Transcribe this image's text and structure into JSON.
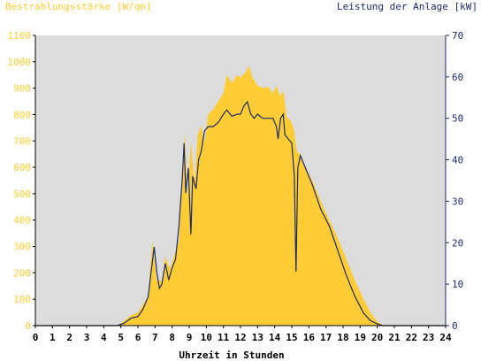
{
  "chart_data": {
    "type": "area",
    "title_left": "Bestrahlungsstärke [W/qm]",
    "title_right": "Leistung der Anlage [kW]",
    "xlabel": "Uhrzeit in Stunden",
    "x_ticks": [
      "0",
      "1",
      "2",
      "3",
      "4",
      "5",
      "6",
      "7",
      "8",
      "9",
      "10",
      "11",
      "12",
      "13",
      "14",
      "15",
      "16",
      "17",
      "18",
      "19",
      "20",
      "21",
      "22",
      "23",
      "24"
    ],
    "xlim": [
      0,
      24
    ],
    "y_left": {
      "ticks": [
        0,
        100,
        200,
        300,
        400,
        500,
        600,
        700,
        800,
        900,
        1000,
        1100
      ],
      "lim": [
        0,
        1100
      ]
    },
    "y_right": {
      "ticks": [
        0,
        10,
        20,
        30,
        40,
        50,
        60,
        70
      ],
      "lim": [
        0,
        70
      ]
    },
    "colors": {
      "irradiance": "#ffcc33",
      "power": "#1a2a6c",
      "plot_bg": "#dcdcdc",
      "left_axis_text": "#ffcc33",
      "right_axis_text": "#1a2a6c"
    },
    "series": [
      {
        "name": "Bestrahlungsstärke",
        "axis": "left",
        "style": "area",
        "points": [
          [
            0,
            0
          ],
          [
            4.7,
            0
          ],
          [
            5.0,
            8
          ],
          [
            5.5,
            35
          ],
          [
            6.0,
            50
          ],
          [
            6.3,
            80
          ],
          [
            6.6,
            110
          ],
          [
            6.85,
            320
          ],
          [
            7.1,
            170
          ],
          [
            7.4,
            170
          ],
          [
            7.6,
            260
          ],
          [
            7.9,
            215
          ],
          [
            8.1,
            260
          ],
          [
            8.4,
            320
          ],
          [
            8.6,
            600
          ],
          [
            8.75,
            730
          ],
          [
            8.9,
            480
          ],
          [
            9.1,
            700
          ],
          [
            9.3,
            540
          ],
          [
            9.5,
            720
          ],
          [
            9.7,
            760
          ],
          [
            9.9,
            690
          ],
          [
            10.1,
            800
          ],
          [
            10.4,
            820
          ],
          [
            10.7,
            850
          ],
          [
            11.0,
            880
          ],
          [
            11.2,
            950
          ],
          [
            11.5,
            920
          ],
          [
            11.8,
            950
          ],
          [
            12.0,
            940
          ],
          [
            12.3,
            960
          ],
          [
            12.5,
            985
          ],
          [
            12.7,
            940
          ],
          [
            13.0,
            910
          ],
          [
            13.3,
            900
          ],
          [
            13.6,
            905
          ],
          [
            13.9,
            880
          ],
          [
            14.1,
            910
          ],
          [
            14.3,
            870
          ],
          [
            14.5,
            890
          ],
          [
            14.7,
            790
          ],
          [
            14.9,
            780
          ],
          [
            15.1,
            750
          ],
          [
            15.3,
            660
          ],
          [
            15.5,
            650
          ],
          [
            15.8,
            600
          ],
          [
            16.2,
            550
          ],
          [
            16.7,
            470
          ],
          [
            17.2,
            400
          ],
          [
            17.7,
            330
          ],
          [
            18.2,
            250
          ],
          [
            18.7,
            170
          ],
          [
            19.2,
            100
          ],
          [
            19.6,
            50
          ],
          [
            20.0,
            15
          ],
          [
            20.4,
            0
          ],
          [
            24,
            0
          ]
        ]
      },
      {
        "name": "Leistung der Anlage",
        "axis": "right",
        "style": "line",
        "points": [
          [
            0,
            0
          ],
          [
            4.8,
            0
          ],
          [
            5.2,
            0.6
          ],
          [
            5.6,
            1.8
          ],
          [
            6.0,
            2.2
          ],
          [
            6.3,
            4.0
          ],
          [
            6.6,
            7.0
          ],
          [
            6.8,
            14
          ],
          [
            6.95,
            19
          ],
          [
            7.1,
            13
          ],
          [
            7.25,
            9
          ],
          [
            7.4,
            10
          ],
          [
            7.6,
            15
          ],
          [
            7.8,
            11
          ],
          [
            8.0,
            14
          ],
          [
            8.2,
            16
          ],
          [
            8.4,
            24
          ],
          [
            8.6,
            36
          ],
          [
            8.7,
            44
          ],
          [
            8.8,
            32
          ],
          [
            8.95,
            38
          ],
          [
            9.1,
            22
          ],
          [
            9.2,
            36
          ],
          [
            9.4,
            33
          ],
          [
            9.55,
            40
          ],
          [
            9.7,
            42
          ],
          [
            9.9,
            47
          ],
          [
            10.1,
            48
          ],
          [
            10.4,
            48
          ],
          [
            10.7,
            49
          ],
          [
            11.0,
            51
          ],
          [
            11.2,
            52
          ],
          [
            11.5,
            50.5
          ],
          [
            11.8,
            51
          ],
          [
            12.0,
            51
          ],
          [
            12.2,
            53
          ],
          [
            12.4,
            54
          ],
          [
            12.6,
            51
          ],
          [
            12.8,
            50
          ],
          [
            13.0,
            51
          ],
          [
            13.3,
            50
          ],
          [
            13.6,
            50
          ],
          [
            13.9,
            50
          ],
          [
            14.1,
            48
          ],
          [
            14.2,
            45
          ],
          [
            14.35,
            50
          ],
          [
            14.5,
            51
          ],
          [
            14.6,
            46
          ],
          [
            14.8,
            45
          ],
          [
            15.0,
            44
          ],
          [
            15.15,
            36
          ],
          [
            15.25,
            13
          ],
          [
            15.35,
            38
          ],
          [
            15.5,
            41
          ],
          [
            15.8,
            38
          ],
          [
            16.2,
            34
          ],
          [
            16.7,
            28
          ],
          [
            17.2,
            24
          ],
          [
            17.7,
            18
          ],
          [
            18.2,
            12
          ],
          [
            18.7,
            7
          ],
          [
            19.2,
            3
          ],
          [
            19.6,
            1.2
          ],
          [
            20.0,
            0.4
          ],
          [
            20.3,
            0
          ],
          [
            24,
            0
          ]
        ]
      }
    ]
  }
}
